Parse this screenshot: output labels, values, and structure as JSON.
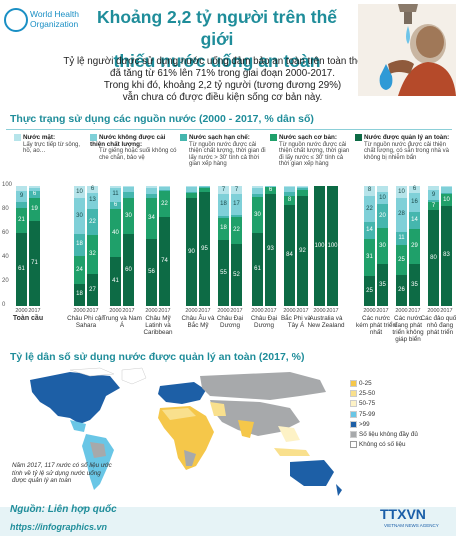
{
  "header": {
    "org_line1": "World Health",
    "org_line2": "Organization",
    "title_line1": "Khoảng 2,2 tỷ người trên thế giới",
    "title_line2": "thiếu nước uống an toàn"
  },
  "intro": {
    "l1": "Tỷ lệ người được sử dụng nước uống đảm bảo an toàn trên toàn thế giới",
    "l2": "đã tăng từ 61% lên 71% trong giai đoạn 2000-2017.",
    "l3": "Trong khi đó, khoảng 2,2 tỷ người (tương đương 29%)",
    "l4": "vẫn chưa có được điều kiện sống cơ bản này."
  },
  "section1_title": "Thực trạng sử dụng các nguồn nước (2000 - 2017, % dân số)",
  "legend": [
    {
      "t": "Nước mặt:",
      "d": "Lấy trực tiếp từ sông, hồ, ao…",
      "color": "#b6e4ea"
    },
    {
      "t": "Nước không được cải thiện chất lượng:",
      "d": "Từ giếng hoặc suối không có che chắn, bảo vệ",
      "color": "#7fd0d8"
    },
    {
      "t": "Nước sạch hạn chế:",
      "d": "Từ nguồn nước được cải thiện chất lượng, thời gian đi lấy nước > 30' tính cả thời gian xếp hàng",
      "color": "#45b6ae"
    },
    {
      "t": "Nước sạch cơ bản:",
      "d": "Từ nguồn nước được cải thiện chất lượng, thời gian đi lấy nước ≤ 30' tính cả thời gian xếp hàng",
      "color": "#1fa06a"
    },
    {
      "t": "Nước được quản lý an toàn:",
      "d": "Từ nguồn nước được cải thiện chất lượng, có sẵn trong nhà và không bị nhiễm bẩn",
      "color": "#0d6b45"
    }
  ],
  "chart_data": {
    "type": "bar",
    "stacked": true,
    "ylim": [
      0,
      100
    ],
    "yticks": [
      "100",
      "80",
      "60",
      "40",
      "20",
      "0"
    ],
    "years": [
      "2000",
      "2017"
    ],
    "series_colors": [
      "#0d6b45",
      "#1fa06a",
      "#45b6ae",
      "#7fd0d8",
      "#b6e4ea"
    ],
    "groups": [
      {
        "name": "Toàn cầu",
        "bars": [
          [
            61,
            21,
            5,
            9,
            4
          ],
          [
            71,
            19,
            6,
            2,
            2
          ]
        ]
      },
      {
        "name": "Châu Phi cận Sahara",
        "bars": [
          [
            18,
            24,
            18,
            30,
            10
          ],
          [
            27,
            32,
            22,
            13,
            6
          ]
        ]
      },
      {
        "name": "Trung và Nam Á",
        "bars": [
          [
            41,
            40,
            6,
            11,
            2
          ],
          [
            60,
            30,
            5,
            4,
            1
          ]
        ]
      },
      {
        "name": "Châu Mỹ Latinh và Caribbean",
        "bars": [
          [
            56,
            34,
            3,
            5,
            2
          ],
          [
            74,
            22,
            1,
            2,
            1
          ]
        ]
      },
      {
        "name": "Châu Âu và Bắc Mỹ",
        "bars": [
          [
            90,
            4,
            1,
            4,
            1
          ],
          [
            95,
            3,
            1,
            1,
            0
          ]
        ]
      },
      {
        "name": "Châu Đại Dương",
        "bars": [
          [
            55,
            18,
            2,
            18,
            7
          ],
          [
            52,
            22,
            2,
            17,
            7
          ]
        ]
      },
      {
        "name": "Châu Đại Dương",
        "bars": [
          [
            61,
            30,
            2,
            5,
            2
          ],
          [
            93,
            6,
            0,
            1,
            0
          ]
        ]
      },
      {
        "name": "Bắc Phi và Tây Á",
        "bars": [
          [
            84,
            8,
            3,
            4,
            1
          ],
          [
            92,
            5,
            1,
            1,
            1
          ]
        ]
      },
      {
        "name": "Australia và New Zealand",
        "bars": [
          [
            100,
            0,
            0,
            0,
            0
          ],
          [
            100,
            0,
            0,
            0,
            0
          ]
        ]
      },
      {
        "name": "Các nước kém phát triển nhất",
        "bars": [
          [
            25,
            31,
            14,
            22,
            8
          ],
          [
            35,
            30,
            20,
            10,
            5
          ]
        ]
      },
      {
        "name": "Các nước đang phát triển không giáp biển",
        "bars": [
          [
            26,
            25,
            11,
            28,
            10
          ],
          [
            35,
            29,
            14,
            16,
            6
          ]
        ]
      },
      {
        "name": "Các đảo quốc nhỏ đang phát triển",
        "bars": [
          [
            80,
            7,
            1,
            9,
            3
          ],
          [
            83,
            10,
            1,
            5,
            1
          ]
        ]
      }
    ]
  },
  "section2_title": "Tỷ lệ dân số sử dụng nước được quản lý an toàn (2017, %)",
  "map_legend": [
    {
      "label": "0-25",
      "color": "#f5c74a"
    },
    {
      "label": "25-50",
      "color": "#f9e08d"
    },
    {
      "label": "50-75",
      "color": "#fdf2c6"
    },
    {
      "label": "75-99",
      "color": "#69c6e6"
    },
    {
      "label": ">99",
      "color": "#1d5fa6"
    },
    {
      "label": "Số liệu không đầy đủ",
      "color": "#a7a9ab"
    },
    {
      "label": "Không có số liệu",
      "color": "#ffffff"
    }
  ],
  "map_note": "Năm 2017, 117 nước có số liệu ước tính về tỷ lệ sử dụng nước uống được quản lý an toàn",
  "footer": {
    "source": "Nguồn: Liên hợp quốc",
    "url": "https://infographics.vn",
    "brand": "TTXVN",
    "brand_sub": "VIETNAM NEWS AGENCY"
  }
}
